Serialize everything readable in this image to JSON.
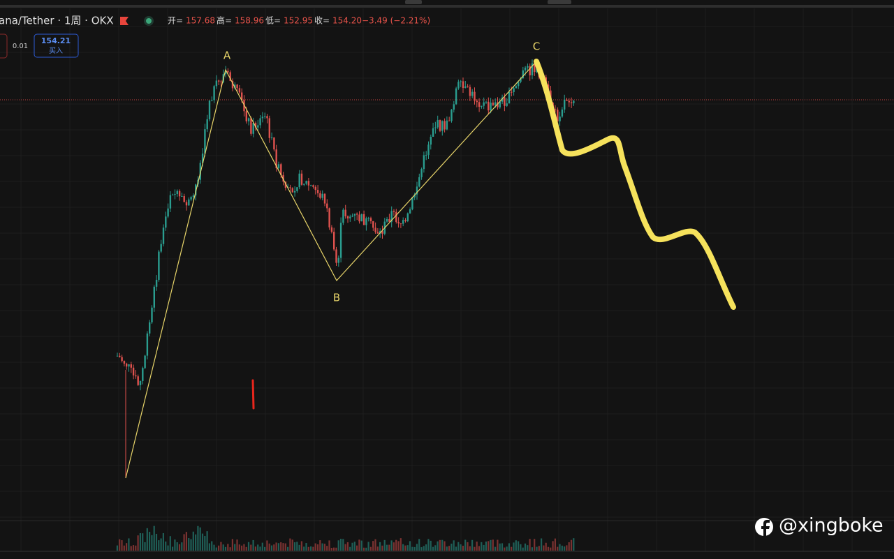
{
  "header": {
    "symbol": "ana/Tether · 1周 · OKX",
    "ohlc": [
      {
        "label": "开=",
        "value": "157.68"
      },
      {
        "label": "高=",
        "value": "158.96"
      },
      {
        "label": "低=",
        "value": "152.95"
      },
      {
        "label": "收=",
        "value": "154.20"
      }
    ],
    "change": "−3.49 (−2.21%)"
  },
  "order": {
    "step": "0.01",
    "price": "154.21",
    "action": "买入"
  },
  "waves": [
    {
      "label": "A"
    },
    {
      "label": "B"
    },
    {
      "label": "C"
    }
  ],
  "watermark": "@xingboke"
}
